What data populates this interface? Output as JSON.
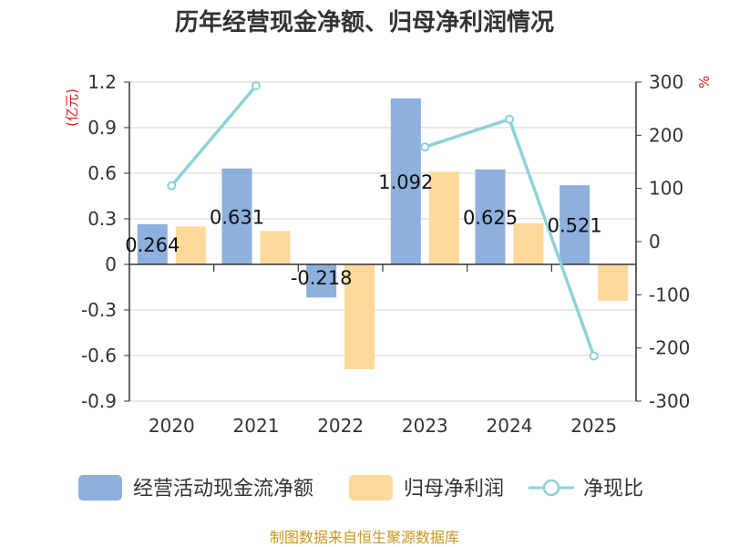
{
  "chart_data": {
    "type": "bar",
    "title": "历年经营现金净额、归母净利润情况",
    "categories": [
      "2020",
      "2021",
      "2022",
      "2023",
      "2024",
      "2025"
    ],
    "series": [
      {
        "name": "经营活动现金流净额",
        "kind": "bar",
        "axis": "left",
        "color": "#8eb0dc",
        "values": [
          0.264,
          0.631,
          -0.218,
          1.092,
          0.625,
          0.521
        ],
        "labels": [
          "0.264",
          "0.631",
          "-0.218",
          "1.092",
          "0.625",
          "0.521"
        ]
      },
      {
        "name": "归母净利润",
        "kind": "bar",
        "axis": "left",
        "color": "#fdd99a",
        "values": [
          0.25,
          0.22,
          -0.69,
          0.61,
          0.27,
          -0.24
        ]
      },
      {
        "name": "净现比",
        "kind": "line",
        "axis": "right",
        "color": "#8dd3d6",
        "values": [
          105,
          293,
          null,
          178,
          230,
          -215
        ]
      }
    ],
    "yleft": {
      "unit": "(亿元)",
      "min": -0.9,
      "max": 1.2,
      "ticks": [
        "1.2",
        "0.9",
        "0.6",
        "0.3",
        "0",
        "-0.3",
        "-0.6",
        "-0.9"
      ]
    },
    "yright": {
      "unit": "%",
      "min": -300,
      "max": 300,
      "ticks": [
        "300",
        "200",
        "100",
        "0",
        "-100",
        "-200",
        "-300"
      ]
    },
    "source": "制图数据来自恒生聚源数据库"
  }
}
